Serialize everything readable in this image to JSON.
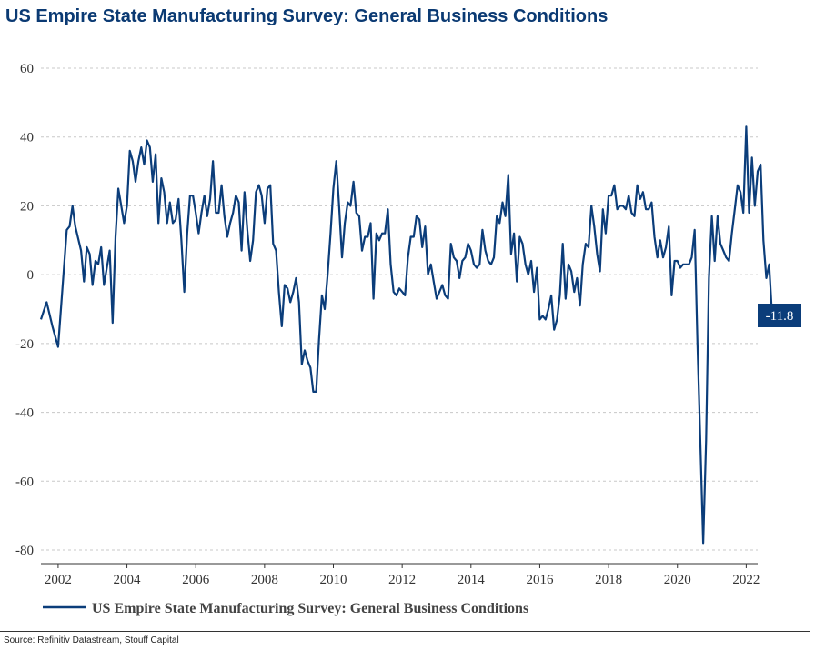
{
  "header": {
    "title": "US Empire State Manufacturing Survey: General Business Conditions"
  },
  "footer": {
    "source": "Source: Refinitiv Datastream, Stouff Capital"
  },
  "colors": {
    "series": "#0b3d7a",
    "grid": "#c8c8c8",
    "label_bg": "#0b3d7a"
  },
  "chart_data": {
    "type": "line",
    "title": "US Empire State Manufacturing Survey: General Business Conditions",
    "xlabel": "",
    "ylabel": "",
    "ylim": [
      -80,
      60
    ],
    "xlim": [
      "2001-07",
      "2022-05"
    ],
    "y_ticks": [
      60,
      40,
      20,
      0,
      -20,
      -40,
      -60,
      -80
    ],
    "x_ticks": [
      "2002",
      "2004",
      "2006",
      "2008",
      "2010",
      "2012",
      "2014",
      "2016",
      "2018",
      "2020",
      "2022"
    ],
    "grid": true,
    "legend_position": "bottom",
    "series": [
      {
        "name": "US Empire State Manufacturing Survey: General Business Conditions",
        "points": [
          [
            "2001-07",
            -13
          ],
          [
            "2001-09",
            -8
          ],
          [
            "2001-11",
            -15
          ],
          [
            "2002-01",
            -21
          ],
          [
            "2002-04",
            13
          ],
          [
            "2002-05",
            14
          ],
          [
            "2002-06",
            20
          ],
          [
            "2002-07",
            14
          ],
          [
            "2002-09",
            7
          ],
          [
            "2002-10",
            -2
          ],
          [
            "2002-11",
            8
          ],
          [
            "2002-12",
            6
          ],
          [
            "2003-01",
            -3
          ],
          [
            "2003-02",
            4
          ],
          [
            "2003-03",
            3
          ],
          [
            "2003-04",
            8
          ],
          [
            "2003-05",
            -3
          ],
          [
            "2003-07",
            7
          ],
          [
            "2003-08",
            -14
          ],
          [
            "2003-09",
            11
          ],
          [
            "2003-10",
            25
          ],
          [
            "2003-11",
            20
          ],
          [
            "2003-12",
            15
          ],
          [
            "2004-01",
            20
          ],
          [
            "2004-02",
            36
          ],
          [
            "2004-03",
            33
          ],
          [
            "2004-04",
            27
          ],
          [
            "2004-05",
            33
          ],
          [
            "2004-06",
            37
          ],
          [
            "2004-07",
            32
          ],
          [
            "2004-08",
            39
          ],
          [
            "2004-09",
            37
          ],
          [
            "2004-10",
            27
          ],
          [
            "2004-11",
            35
          ],
          [
            "2004-12",
            15
          ],
          [
            "2005-01",
            28
          ],
          [
            "2005-02",
            24
          ],
          [
            "2005-03",
            15
          ],
          [
            "2005-04",
            21
          ],
          [
            "2005-05",
            15
          ],
          [
            "2005-06",
            16
          ],
          [
            "2005-07",
            22
          ],
          [
            "2005-08",
            10
          ],
          [
            "2005-09",
            -5
          ],
          [
            "2005-10",
            12
          ],
          [
            "2005-11",
            23
          ],
          [
            "2005-12",
            23
          ],
          [
            "2006-01",
            18
          ],
          [
            "2006-02",
            12
          ],
          [
            "2006-03",
            18
          ],
          [
            "2006-04",
            23
          ],
          [
            "2006-05",
            17
          ],
          [
            "2006-06",
            22
          ],
          [
            "2006-07",
            33
          ],
          [
            "2006-08",
            18
          ],
          [
            "2006-09",
            18
          ],
          [
            "2006-10",
            26
          ],
          [
            "2006-11",
            17
          ],
          [
            "2006-12",
            11
          ],
          [
            "2007-01",
            15
          ],
          [
            "2007-02",
            18
          ],
          [
            "2007-03",
            23
          ],
          [
            "2007-04",
            21
          ],
          [
            "2007-05",
            7
          ],
          [
            "2007-06",
            24
          ],
          [
            "2007-07",
            13
          ],
          [
            "2007-08",
            4
          ],
          [
            "2007-09",
            10
          ],
          [
            "2007-10",
            24
          ],
          [
            "2007-11",
            26
          ],
          [
            "2007-12",
            23
          ],
          [
            "2008-01",
            15
          ],
          [
            "2008-02",
            25
          ],
          [
            "2008-03",
            26
          ],
          [
            "2008-04",
            9
          ],
          [
            "2008-05",
            7
          ],
          [
            "2008-06",
            -5
          ],
          [
            "2008-07",
            -15
          ],
          [
            "2008-08",
            -3
          ],
          [
            "2008-09",
            -4
          ],
          [
            "2008-10",
            -8
          ],
          [
            "2008-11",
            -5
          ],
          [
            "2008-12",
            -1
          ],
          [
            "2009-01",
            -8
          ],
          [
            "2009-02",
            -26
          ],
          [
            "2009-03",
            -22
          ],
          [
            "2009-04",
            -25
          ],
          [
            "2009-05",
            -27
          ],
          [
            "2009-06",
            -34
          ],
          [
            "2009-07",
            -34
          ],
          [
            "2009-08",
            -19
          ],
          [
            "2009-09",
            -6
          ],
          [
            "2009-10",
            -10
          ],
          [
            "2009-11",
            0
          ],
          [
            "2009-12",
            12
          ],
          [
            "2010-01",
            25
          ],
          [
            "2010-02",
            33
          ],
          [
            "2010-03",
            20
          ],
          [
            "2010-04",
            5
          ],
          [
            "2010-05",
            15
          ],
          [
            "2010-06",
            21
          ],
          [
            "2010-07",
            20
          ],
          [
            "2010-08",
            27
          ],
          [
            "2010-09",
            18
          ],
          [
            "2010-10",
            17
          ],
          [
            "2010-11",
            7
          ],
          [
            "2010-12",
            11
          ],
          [
            "2011-01",
            11
          ],
          [
            "2011-02",
            15
          ],
          [
            "2011-03",
            -7
          ],
          [
            "2011-04",
            12
          ],
          [
            "2011-05",
            10
          ],
          [
            "2011-06",
            12
          ],
          [
            "2011-07",
            12
          ],
          [
            "2011-08",
            19
          ],
          [
            "2011-09",
            3
          ],
          [
            "2011-10",
            -5
          ],
          [
            "2011-11",
            -6
          ],
          [
            "2011-12",
            -4
          ],
          [
            "2012-01",
            -5
          ],
          [
            "2012-02",
            -6
          ],
          [
            "2012-03",
            5
          ],
          [
            "2012-04",
            11
          ],
          [
            "2012-05",
            11
          ],
          [
            "2012-06",
            17
          ],
          [
            "2012-07",
            16
          ],
          [
            "2012-08",
            8
          ],
          [
            "2012-09",
            14
          ],
          [
            "2012-10",
            0
          ],
          [
            "2012-11",
            3
          ],
          [
            "2012-12",
            -2
          ],
          [
            "2013-01",
            -7
          ],
          [
            "2013-02",
            -5
          ],
          [
            "2013-03",
            -3
          ],
          [
            "2013-04",
            -6
          ],
          [
            "2013-05",
            -7
          ],
          [
            "2013-06",
            9
          ],
          [
            "2013-07",
            5
          ],
          [
            "2013-08",
            4
          ],
          [
            "2013-09",
            -1
          ],
          [
            "2013-10",
            4
          ],
          [
            "2013-11",
            5
          ],
          [
            "2013-12",
            9
          ],
          [
            "2014-01",
            7
          ],
          [
            "2014-02",
            3
          ],
          [
            "2014-03",
            2
          ],
          [
            "2014-04",
            3
          ],
          [
            "2014-05",
            13
          ],
          [
            "2014-06",
            7
          ],
          [
            "2014-07",
            4
          ],
          [
            "2014-08",
            3
          ],
          [
            "2014-09",
            5
          ],
          [
            "2014-10",
            17
          ],
          [
            "2014-11",
            15
          ],
          [
            "2014-12",
            21
          ],
          [
            "2015-01",
            17
          ],
          [
            "2015-02",
            29
          ],
          [
            "2015-03",
            6
          ],
          [
            "2015-04",
            12
          ],
          [
            "2015-05",
            -2
          ],
          [
            "2015-06",
            11
          ],
          [
            "2015-07",
            9
          ],
          [
            "2015-08",
            3
          ],
          [
            "2015-09",
            0
          ],
          [
            "2015-10",
            4
          ],
          [
            "2015-11",
            -5
          ],
          [
            "2015-12",
            2
          ],
          [
            "2016-01",
            -13
          ],
          [
            "2016-02",
            -12
          ],
          [
            "2016-03",
            -13
          ],
          [
            "2016-04",
            -10
          ],
          [
            "2016-05",
            -6
          ],
          [
            "2016-06",
            -16
          ],
          [
            "2016-07",
            -13
          ],
          [
            "2016-08",
            -6
          ],
          [
            "2016-09",
            9
          ],
          [
            "2016-10",
            -7
          ],
          [
            "2016-11",
            3
          ],
          [
            "2016-12",
            1
          ],
          [
            "2017-01",
            -5
          ],
          [
            "2017-02",
            -1
          ],
          [
            "2017-03",
            -9
          ],
          [
            "2017-04",
            3
          ],
          [
            "2017-05",
            9
          ],
          [
            "2017-06",
            8
          ],
          [
            "2017-07",
            20
          ],
          [
            "2017-08",
            14
          ],
          [
            "2017-09",
            6
          ],
          [
            "2017-10",
            1
          ],
          [
            "2017-11",
            19
          ],
          [
            "2017-12",
            12
          ],
          [
            "2018-01",
            23
          ],
          [
            "2018-02",
            23
          ],
          [
            "2018-03",
            26
          ],
          [
            "2018-04",
            19
          ],
          [
            "2018-05",
            20
          ],
          [
            "2018-06",
            20
          ],
          [
            "2018-07",
            19
          ],
          [
            "2018-08",
            23
          ],
          [
            "2018-09",
            18
          ],
          [
            "2018-10",
            17
          ],
          [
            "2018-11",
            26
          ],
          [
            "2018-12",
            22
          ],
          [
            "2019-01",
            24
          ],
          [
            "2019-02",
            19
          ],
          [
            "2019-03",
            19
          ],
          [
            "2019-04",
            21
          ],
          [
            "2019-05",
            11
          ],
          [
            "2019-06",
            5
          ],
          [
            "2019-07",
            10
          ],
          [
            "2019-08",
            5
          ],
          [
            "2019-09",
            8
          ],
          [
            "2019-10",
            14
          ],
          [
            "2019-11",
            -6
          ],
          [
            "2019-12",
            4
          ],
          [
            "2020-01",
            4
          ],
          [
            "2020-02",
            2
          ],
          [
            "2020-03",
            3
          ],
          [
            "2020-04",
            3
          ],
          [
            "2020-05",
            3
          ],
          [
            "2020-06",
            5
          ],
          [
            "2020-07",
            13
          ],
          [
            "2020-08",
            -20
          ],
          [
            "2020-09",
            -49
          ],
          [
            "2020-10",
            -78
          ],
          [
            "2020-11",
            -48
          ],
          [
            "2020-12",
            -1
          ],
          [
            "2021-01",
            17
          ],
          [
            "2021-02",
            4
          ],
          [
            "2021-03",
            17
          ],
          [
            "2021-04",
            9
          ],
          [
            "2021-05",
            7
          ],
          [
            "2021-06",
            5
          ],
          [
            "2021-07",
            4
          ],
          [
            "2021-08",
            12
          ],
          [
            "2021-09",
            19
          ],
          [
            "2021-10",
            26
          ],
          [
            "2021-11",
            24
          ],
          [
            "2021-12",
            18
          ],
          [
            "2022-01",
            43
          ],
          [
            "2022-02",
            18
          ],
          [
            "2022-03",
            34
          ],
          [
            "2022-04",
            20
          ],
          [
            "2022-05",
            30
          ],
          [
            "2022-06",
            32
          ],
          [
            "2022-07",
            10
          ],
          [
            "2022-08",
            -1
          ],
          [
            "2022-09",
            3
          ],
          [
            "2022-10",
            -11.8
          ]
        ]
      }
    ],
    "last_value_label": "-11.8"
  }
}
